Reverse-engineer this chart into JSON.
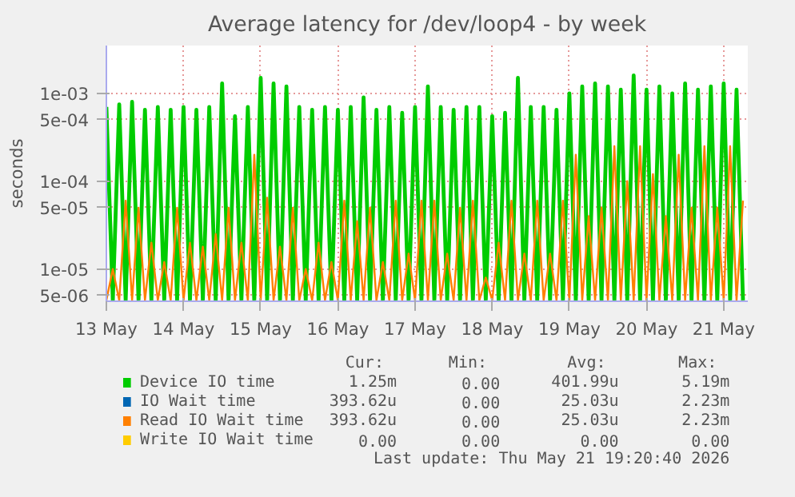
{
  "chart_data": {
    "type": "line",
    "title": "Average latency for /dev/loop4 - by week",
    "ylabel": "seconds",
    "log": "y",
    "grid": true,
    "legend": "bottom",
    "line_style": "solid",
    "ylim": [
      4.3e-06,
      0.0035
    ],
    "yticks": [
      {
        "value": 5e-06,
        "label": "5e-06"
      },
      {
        "value": 1e-05,
        "label": "1e-05"
      },
      {
        "value": 5e-05,
        "label": "5e-05"
      },
      {
        "value": 0.0001,
        "label": "1e-04"
      },
      {
        "value": 0.0005,
        "label": "5e-04"
      },
      {
        "value": 0.001,
        "label": "1e-03"
      }
    ],
    "xlim": [
      "2026-05-13T00:00",
      "2026-05-21T07:30"
    ],
    "xticks": [
      {
        "value": "2026-05-13",
        "label": "13 May"
      },
      {
        "value": "2026-05-14",
        "label": "14 May"
      },
      {
        "value": "2026-05-15",
        "label": "15 May"
      },
      {
        "value": "2026-05-16",
        "label": "16 May"
      },
      {
        "value": "2026-05-17",
        "label": "17 May"
      },
      {
        "value": "2026-05-18",
        "label": "18 May"
      },
      {
        "value": "2026-05-19",
        "label": "19 May"
      },
      {
        "value": "2026-05-20",
        "label": "20 May"
      },
      {
        "value": "2026-05-21",
        "label": "21 May"
      }
    ],
    "x": [
      "2026-05-13T00:00",
      "2026-05-13T02:00",
      "2026-05-13T04:00",
      "2026-05-13T06:00",
      "2026-05-13T08:00",
      "2026-05-13T10:00",
      "2026-05-13T12:00",
      "2026-05-13T14:00",
      "2026-05-13T16:00",
      "2026-05-13T18:00",
      "2026-05-13T20:00",
      "2026-05-13T22:00",
      "2026-05-14T00:00",
      "2026-05-14T02:00",
      "2026-05-14T04:00",
      "2026-05-14T06:00",
      "2026-05-14T08:00",
      "2026-05-14T10:00",
      "2026-05-14T12:00",
      "2026-05-14T14:00",
      "2026-05-14T16:00",
      "2026-05-14T18:00",
      "2026-05-14T20:00",
      "2026-05-14T22:00",
      "2026-05-15T00:00",
      "2026-05-15T02:00",
      "2026-05-15T04:00",
      "2026-05-15T06:00",
      "2026-05-15T08:00",
      "2026-05-15T10:00",
      "2026-05-15T12:00",
      "2026-05-15T14:00",
      "2026-05-15T16:00",
      "2026-05-15T18:00",
      "2026-05-15T20:00",
      "2026-05-15T22:00",
      "2026-05-16T00:00",
      "2026-05-16T02:00",
      "2026-05-16T04:00",
      "2026-05-16T06:00",
      "2026-05-16T08:00",
      "2026-05-16T10:00",
      "2026-05-16T12:00",
      "2026-05-16T14:00",
      "2026-05-16T16:00",
      "2026-05-16T18:00",
      "2026-05-16T20:00",
      "2026-05-16T22:00",
      "2026-05-17T00:00",
      "2026-05-17T02:00",
      "2026-05-17T04:00",
      "2026-05-17T06:00",
      "2026-05-17T08:00",
      "2026-05-17T10:00",
      "2026-05-17T12:00",
      "2026-05-17T14:00",
      "2026-05-17T16:00",
      "2026-05-17T18:00",
      "2026-05-17T20:00",
      "2026-05-17T22:00",
      "2026-05-18T00:00",
      "2026-05-18T02:00",
      "2026-05-18T04:00",
      "2026-05-18T06:00",
      "2026-05-18T08:00",
      "2026-05-18T10:00",
      "2026-05-18T12:00",
      "2026-05-18T14:00",
      "2026-05-18T16:00",
      "2026-05-18T18:00",
      "2026-05-18T20:00",
      "2026-05-18T22:00",
      "2026-05-19T00:00",
      "2026-05-19T02:00",
      "2026-05-19T04:00",
      "2026-05-19T06:00",
      "2026-05-19T08:00",
      "2026-05-19T10:00",
      "2026-05-19T12:00",
      "2026-05-19T14:00",
      "2026-05-19T16:00",
      "2026-05-19T18:00",
      "2026-05-19T20:00",
      "2026-05-19T22:00",
      "2026-05-20T00:00",
      "2026-05-20T02:00",
      "2026-05-20T04:00",
      "2026-05-20T06:00",
      "2026-05-20T08:00",
      "2026-05-20T10:00",
      "2026-05-20T12:00",
      "2026-05-20T14:00",
      "2026-05-20T16:00",
      "2026-05-20T18:00",
      "2026-05-20T20:00",
      "2026-05-20T22:00",
      "2026-05-21T00:00",
      "2026-05-21T02:00",
      "2026-05-21T04:00",
      "2026-05-21T06:00"
    ],
    "series": [
      {
        "name": "Device IO time",
        "color": "#00cc00",
        "values": [
          0.0007,
          4.4e-06,
          0.00075,
          4.4e-06,
          0.0008,
          4.4e-06,
          0.00065,
          4.4e-06,
          0.0007,
          4.4e-06,
          0.00065,
          4.4e-06,
          0.0007,
          4.4e-06,
          0.00065,
          4.4e-06,
          0.0007,
          4.4e-06,
          0.0013,
          4.4e-06,
          0.00055,
          4.4e-06,
          0.0007,
          4.4e-06,
          0.0015,
          4.4e-06,
          0.0013,
          4.4e-06,
          0.0012,
          4.4e-06,
          0.0007,
          4.4e-06,
          0.00065,
          4.4e-06,
          0.0007,
          4.4e-06,
          0.00065,
          4.4e-06,
          0.0007,
          4.4e-06,
          0.0009,
          4.4e-06,
          0.00065,
          4.4e-06,
          0.0007,
          4.4e-06,
          0.0006,
          4.4e-06,
          0.0007,
          4.4e-06,
          0.0012,
          4.4e-06,
          0.0007,
          4.4e-06,
          0.00065,
          4.4e-06,
          0.0007,
          4.4e-06,
          0.0007,
          4.4e-06,
          0.00055,
          4.4e-06,
          0.0006,
          4.4e-06,
          0.0015,
          4.4e-06,
          0.0007,
          4.4e-06,
          0.0007,
          4.4e-06,
          0.00065,
          4.4e-06,
          0.001,
          4.4e-06,
          0.0012,
          4.4e-06,
          0.0013,
          4.4e-06,
          0.0012,
          4.4e-06,
          0.0011,
          4.4e-06,
          0.0016,
          4.4e-06,
          0.0011,
          4.4e-06,
          0.0012,
          4.4e-06,
          0.001,
          4.4e-06,
          0.0013,
          4.4e-06,
          0.0011,
          4.4e-06,
          0.0012,
          4.4e-06,
          0.0013,
          4.4e-06,
          0.0011,
          4.4e-06
        ]
      },
      {
        "name": "IO Wait time",
        "color": "#0066b3",
        "values": [
          null,
          null,
          null,
          null,
          null,
          null,
          null,
          null,
          null,
          null,
          null,
          null,
          null,
          null,
          null,
          null,
          null,
          null,
          null,
          null,
          null,
          null,
          null,
          null,
          null,
          null,
          null,
          null,
          null,
          null,
          null,
          null,
          null,
          null,
          null,
          null,
          null,
          null,
          null,
          null,
          null,
          null,
          null,
          null,
          null,
          null,
          null,
          null,
          null,
          null,
          null,
          null,
          null,
          null,
          null,
          null,
          null,
          null,
          null,
          null,
          null,
          null,
          null,
          null,
          null,
          null,
          null,
          null,
          null,
          null,
          null,
          null,
          null,
          null,
          null,
          null,
          null,
          null,
          null,
          null,
          null,
          null,
          null,
          null,
          null,
          null,
          null,
          null,
          null,
          null,
          null,
          null,
          null,
          null,
          null,
          null,
          null,
          null,
          null,
          null
        ]
      },
      {
        "name": "Read IO Wait time",
        "color": "#ff8000",
        "values": [
          4.4e-06,
          1e-05,
          4.4e-06,
          6e-05,
          4.4e-06,
          5e-05,
          4.4e-06,
          2e-05,
          4.4e-06,
          1.2e-05,
          4.4e-06,
          5e-05,
          4.4e-06,
          2e-05,
          4.4e-06,
          1.8e-05,
          4.4e-06,
          2.5e-05,
          4.4e-06,
          5e-05,
          4.4e-06,
          2e-05,
          4.4e-06,
          0.0002,
          4.4e-06,
          6.5e-05,
          4.4e-06,
          1.8e-05,
          4.4e-06,
          5e-05,
          4.4e-06,
          1e-05,
          4.4e-06,
          2e-05,
          4.4e-06,
          1.2e-05,
          4.4e-06,
          6e-05,
          4.4e-06,
          3.5e-05,
          4.4e-06,
          5e-05,
          4.4e-06,
          1.2e-05,
          4.4e-06,
          6e-05,
          4.4e-06,
          1.5e-05,
          4.4e-06,
          6e-05,
          4.4e-06,
          6e-05,
          4.4e-06,
          1.5e-05,
          4.4e-06,
          5e-05,
          4.4e-06,
          6e-05,
          4.4e-06,
          8e-06,
          4.4e-06,
          2e-05,
          4.4e-06,
          6e-05,
          4.4e-06,
          1.5e-05,
          4.4e-06,
          6e-05,
          4.4e-06,
          1.5e-05,
          4.4e-06,
          6e-05,
          4.4e-06,
          0.0002,
          4.4e-06,
          4e-05,
          4.4e-06,
          5e-05,
          4.4e-06,
          0.00025,
          4.4e-06,
          0.0001,
          4.4e-06,
          0.00025,
          4.4e-06,
          0.00012,
          4.4e-06,
          4e-05,
          4.4e-06,
          0.0002,
          4.4e-06,
          5e-05,
          4.4e-06,
          0.00025,
          4.4e-06,
          5e-05,
          4.4e-06,
          0.00025,
          4.4e-06,
          6e-05
        ]
      },
      {
        "name": "Write IO Wait time",
        "color": "#ffcc00",
        "values": [
          null,
          null,
          null,
          null,
          null,
          null,
          null,
          null,
          null,
          null,
          null,
          null,
          null,
          null,
          null,
          null,
          null,
          null,
          null,
          null,
          null,
          null,
          null,
          null,
          null,
          null,
          null,
          null,
          null,
          null,
          null,
          null,
          null,
          null,
          null,
          null,
          null,
          null,
          null,
          null,
          null,
          null,
          null,
          null,
          null,
          null,
          null,
          null,
          null,
          null,
          null,
          null,
          null,
          null,
          null,
          null,
          null,
          null,
          null,
          null,
          null,
          null,
          null,
          null,
          null,
          null,
          null,
          null,
          null,
          null,
          null,
          null,
          null,
          null,
          null,
          null,
          null,
          null,
          null,
          null,
          null,
          null,
          null,
          null,
          null,
          null,
          null,
          null,
          null,
          null,
          null,
          null,
          null,
          null,
          null,
          null,
          null,
          null,
          null,
          null
        ]
      }
    ],
    "annotations": [
      "Cur:",
      "Min:",
      "Avg:",
      "Max:",
      "1.25m",
      "0.00",
      "401.99u",
      "5.19m",
      "393.62u",
      "0.00",
      "25.03u",
      "2.23m",
      "393.62u",
      "0.00",
      "25.03u",
      "2.23m",
      "0.00",
      "0.00",
      "0.00",
      "0.00",
      "Last update: Thu May 21 19:20:40 2026"
    ]
  }
}
